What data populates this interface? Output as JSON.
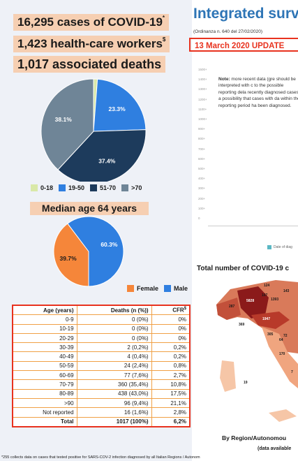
{
  "banners": {
    "cases": "16,295 cases of COVID-19",
    "cases_mark": "*",
    "hcw": "1,423 health-care workers",
    "hcw_mark": "$",
    "deaths": "1,017 associated deaths"
  },
  "age_pie": {
    "slices": [
      {
        "label": "0-18",
        "percent": 1.2,
        "display": "1.2%",
        "color": "#d9e8a8"
      },
      {
        "label": "19-50",
        "percent": 23.3,
        "display": "23.3%",
        "color": "#2f7fe0"
      },
      {
        "label": "51-70",
        "percent": 37.4,
        "display": "37.4%",
        "color": "#1d3b5c"
      },
      {
        "label": ">70",
        "percent": 38.1,
        "display": "38.1%",
        "color": "#6f8597"
      }
    ]
  },
  "median_age": "Median age 64 years",
  "sex_pie": {
    "slices": [
      {
        "label": "Female",
        "percent": 39.7,
        "display": "39.7%",
        "color": "#f5863a"
      },
      {
        "label": "Male",
        "percent": 60.3,
        "display": "60.3%",
        "color": "#2f7fe0"
      }
    ]
  },
  "deaths_table": {
    "headers": [
      "Age (years)",
      "Deaths (n (%))",
      "CFR"
    ],
    "cfr_mark": "$",
    "rows": [
      [
        "0-9",
        "0 (0%)",
        "0%"
      ],
      [
        "10-19",
        "0 (0%)",
        "0%"
      ],
      [
        "20-29",
        "0 (0%)",
        "0%"
      ],
      [
        "30-39",
        "2 (0,2%)",
        "0,2%"
      ],
      [
        "40-49",
        "4 (0,4%)",
        "0,2%"
      ],
      [
        "50-59",
        "24 (2,4%)",
        "0,8%"
      ],
      [
        "60-69",
        "77 (7,6%)",
        "2,7%"
      ],
      [
        "70-79",
        "360 (35,4%)",
        "10,8%"
      ],
      [
        "80-89",
        "438 (43,0%)",
        "17,5%"
      ],
      [
        ">90",
        "96 (9,4%)",
        "21,1%"
      ],
      [
        "Not reported",
        "16 (1,6%)",
        "2,8%"
      ]
    ],
    "total": [
      "Total",
      "1017 (100%)",
      "6,2%"
    ]
  },
  "right": {
    "title": "Integrated surv",
    "ordinance": "(Ordinanza n. 640 del 27/02/2020)",
    "update": "13 March 2020 UPDATE",
    "note_bold": "Note:",
    "note_text": " more recent data (gre should be interpreted with c to the possible reporting dela recently diagnosed cases a possibility that cases with da within the reporting period ha been diagnosed.",
    "y_ticks": [
      "1500+",
      "1400+",
      "1300+",
      "1200+",
      "1100+",
      "1000+",
      "900+",
      "800+",
      "700+",
      "600+",
      "500+",
      "400+",
      "300+",
      "200+",
      "100+",
      "0"
    ],
    "chart_legend": "Date of diag",
    "map_title": "Total number of COVID-19 c",
    "map_numbers": [
      "124",
      "107",
      "143",
      "287",
      "5828",
      "1393",
      "1947",
      "369",
      "305",
      "72",
      "64",
      "170",
      "19",
      "7"
    ],
    "region_title": "By Region/Autonomou",
    "data_avail": "(data available"
  },
  "footnote": "*255 collects data on cases that tested positive for SARS-COV-2 infection diagnosed by all Italian Regions / Autonom"
}
